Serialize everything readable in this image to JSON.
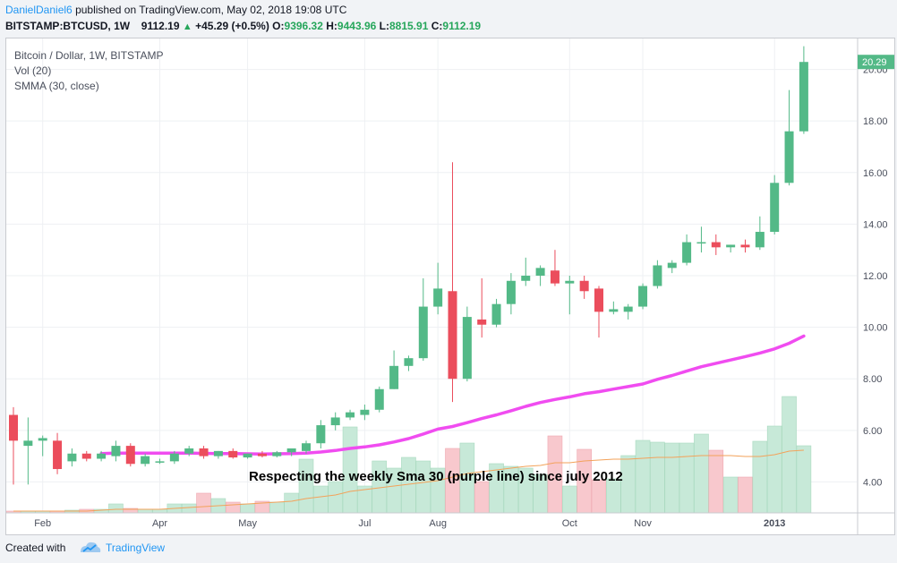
{
  "header": {
    "author": "DanielDaniel6",
    "published_text": "published on TradingView.com, May 02, 2018 19:08 UTC",
    "symbol_label": "BITSTAMP:BTCUSD, 1W",
    "last_price": "9112.19",
    "change": "+45.29 (+0.5%)",
    "o_label": "O:",
    "o_value": "9396.32",
    "h_label": "H:",
    "h_value": "9443.96",
    "l_label": "L:",
    "l_value": "8815.91",
    "c_label": "C:",
    "c_value": "9112.19",
    "up_arrow": "▲",
    "colors": {
      "up": "#26a65b",
      "author": "#2196f3"
    }
  },
  "legend": {
    "title": "Bitcoin / Dollar, 1W, BITSTAMP",
    "vol": "Vol (20)",
    "smma": "SMMA (30, close)"
  },
  "annotation": "Respecting the weekly Sma 30 (purple line) since july 2012",
  "footer": {
    "created_with": "Created with",
    "brand": "TradingView"
  },
  "chart_data": {
    "type": "candlestick",
    "title": "Bitcoin / Dollar, 1W, BITSTAMP",
    "price_axis": {
      "ticks": [
        "4.00",
        "6.00",
        "8.00",
        "10.00",
        "12.00",
        "14.00",
        "16.00",
        "18.00",
        "20.00"
      ],
      "range": [
        2.8,
        21.2
      ],
      "last_label": "20.29"
    },
    "time_axis": {
      "labels": [
        "Feb",
        "Apr",
        "May",
        "Jul",
        "Aug",
        "Oct",
        "Nov",
        "2013"
      ]
    },
    "colors": {
      "up": "#53b987",
      "down": "#eb4d5c",
      "up_vol": "#c7e9d8",
      "down_vol": "#f8c8cd",
      "smma": "#f04cf0",
      "vol_ma": "#f3a25a"
    },
    "candles": [
      {
        "o": 6.6,
        "h": 6.9,
        "l": 3.9,
        "c": 5.6
      },
      {
        "o": 5.4,
        "h": 6.5,
        "l": 3.9,
        "c": 5.6
      },
      {
        "o": 5.6,
        "h": 5.8,
        "l": 5.0,
        "c": 5.7
      },
      {
        "o": 5.6,
        "h": 5.9,
        "l": 4.3,
        "c": 4.5
      },
      {
        "o": 4.8,
        "h": 5.3,
        "l": 4.6,
        "c": 5.1
      },
      {
        "o": 5.1,
        "h": 5.2,
        "l": 4.8,
        "c": 4.9
      },
      {
        "o": 4.9,
        "h": 5.2,
        "l": 4.8,
        "c": 5.1
      },
      {
        "o": 5.0,
        "h": 5.6,
        "l": 4.8,
        "c": 5.4
      },
      {
        "o": 5.4,
        "h": 5.5,
        "l": 4.6,
        "c": 4.7
      },
      {
        "o": 4.7,
        "h": 5.1,
        "l": 4.6,
        "c": 5.0
      },
      {
        "o": 4.8,
        "h": 4.9,
        "l": 4.7,
        "c": 4.8
      },
      {
        "o": 4.8,
        "h": 5.2,
        "l": 4.7,
        "c": 5.1
      },
      {
        "o": 5.1,
        "h": 5.4,
        "l": 5.0,
        "c": 5.3
      },
      {
        "o": 5.3,
        "h": 5.4,
        "l": 4.9,
        "c": 5.0
      },
      {
        "o": 5.0,
        "h": 5.2,
        "l": 4.9,
        "c": 5.2
      },
      {
        "o": 5.2,
        "h": 5.3,
        "l": 4.9,
        "c": 4.95
      },
      {
        "o": 4.95,
        "h": 5.1,
        "l": 4.9,
        "c": 5.1
      },
      {
        "o": 5.1,
        "h": 5.2,
        "l": 4.95,
        "c": 5.0
      },
      {
        "o": 5.0,
        "h": 5.2,
        "l": 4.95,
        "c": 5.15
      },
      {
        "o": 5.15,
        "h": 5.3,
        "l": 5.0,
        "c": 5.3
      },
      {
        "o": 5.2,
        "h": 5.6,
        "l": 5.1,
        "c": 5.5
      },
      {
        "o": 5.5,
        "h": 6.4,
        "l": 5.3,
        "c": 6.2
      },
      {
        "o": 6.2,
        "h": 6.7,
        "l": 6.0,
        "c": 6.5
      },
      {
        "o": 6.5,
        "h": 6.8,
        "l": 6.4,
        "c": 6.7
      },
      {
        "o": 6.6,
        "h": 7.0,
        "l": 6.4,
        "c": 6.8
      },
      {
        "o": 6.8,
        "h": 7.7,
        "l": 6.7,
        "c": 7.6
      },
      {
        "o": 7.6,
        "h": 9.1,
        "l": 7.6,
        "c": 8.5
      },
      {
        "o": 8.5,
        "h": 8.9,
        "l": 8.3,
        "c": 8.8
      },
      {
        "o": 8.8,
        "h": 11.9,
        "l": 8.7,
        "c": 10.8
      },
      {
        "o": 10.8,
        "h": 12.5,
        "l": 10.5,
        "c": 11.5
      },
      {
        "o": 11.4,
        "h": 16.4,
        "l": 7.1,
        "c": 8.0
      },
      {
        "o": 8.0,
        "h": 10.8,
        "l": 7.9,
        "c": 10.4
      },
      {
        "o": 10.3,
        "h": 11.9,
        "l": 9.6,
        "c": 10.1
      },
      {
        "o": 10.1,
        "h": 11.1,
        "l": 10.0,
        "c": 10.9
      },
      {
        "o": 10.9,
        "h": 12.1,
        "l": 10.5,
        "c": 11.8
      },
      {
        "o": 11.8,
        "h": 12.7,
        "l": 11.6,
        "c": 12.0
      },
      {
        "o": 12.0,
        "h": 12.4,
        "l": 11.6,
        "c": 12.3
      },
      {
        "o": 12.2,
        "h": 13.0,
        "l": 11.6,
        "c": 11.7
      },
      {
        "o": 11.7,
        "h": 12.0,
        "l": 10.5,
        "c": 11.8
      },
      {
        "o": 11.8,
        "h": 12.0,
        "l": 11.1,
        "c": 11.4
      },
      {
        "o": 11.5,
        "h": 11.6,
        "l": 9.6,
        "c": 10.6
      },
      {
        "o": 10.6,
        "h": 11.0,
        "l": 10.5,
        "c": 10.7
      },
      {
        "o": 10.6,
        "h": 10.9,
        "l": 10.3,
        "c": 10.8
      },
      {
        "o": 10.8,
        "h": 11.7,
        "l": 10.7,
        "c": 11.6
      },
      {
        "o": 11.6,
        "h": 12.6,
        "l": 11.5,
        "c": 12.4
      },
      {
        "o": 12.3,
        "h": 12.6,
        "l": 12.1,
        "c": 12.5
      },
      {
        "o": 12.5,
        "h": 13.6,
        "l": 12.4,
        "c": 13.3
      },
      {
        "o": 13.3,
        "h": 13.9,
        "l": 12.9,
        "c": 13.3
      },
      {
        "o": 13.3,
        "h": 13.6,
        "l": 12.8,
        "c": 13.1
      },
      {
        "o": 13.1,
        "h": 13.2,
        "l": 12.9,
        "c": 13.2
      },
      {
        "o": 13.2,
        "h": 13.4,
        "l": 12.9,
        "c": 13.1
      },
      {
        "o": 13.1,
        "h": 14.3,
        "l": 13.0,
        "c": 13.7
      },
      {
        "o": 13.7,
        "h": 15.9,
        "l": 13.6,
        "c": 15.6
      },
      {
        "o": 15.6,
        "h": 19.2,
        "l": 15.5,
        "c": 17.6
      },
      {
        "o": 17.6,
        "h": 20.9,
        "l": 17.5,
        "c": 20.29
      }
    ],
    "volume": [
      0.02,
      0.02,
      0.02,
      0.02,
      0.03,
      0.04,
      0.04,
      0.1,
      0.05,
      0.04,
      0.04,
      0.1,
      0.1,
      0.22,
      0.16,
      0.12,
      0.1,
      0.13,
      0.12,
      0.22,
      0.6,
      0.3,
      0.35,
      0.96,
      0.3,
      0.58,
      0.5,
      0.62,
      0.58,
      0.5,
      0.72,
      0.78,
      0.35,
      0.55,
      0.52,
      0.5,
      0.43,
      0.86,
      0.3,
      0.71,
      0.37,
      0.38,
      0.64,
      0.81,
      0.79,
      0.78,
      0.78,
      0.88,
      0.7,
      0.4,
      0.4,
      0.8,
      0.97,
      1.3,
      0.75
    ],
    "smma": [
      null,
      null,
      null,
      null,
      null,
      null,
      5.1,
      5.12,
      5.12,
      5.12,
      5.12,
      5.12,
      5.12,
      5.11,
      5.1,
      5.1,
      5.09,
      5.08,
      5.09,
      5.1,
      5.12,
      5.16,
      5.22,
      5.3,
      5.36,
      5.44,
      5.55,
      5.68,
      5.86,
      6.05,
      6.15,
      6.3,
      6.46,
      6.6,
      6.76,
      6.93,
      7.08,
      7.2,
      7.3,
      7.42,
      7.5,
      7.6,
      7.7,
      7.8,
      7.98,
      8.13,
      8.3,
      8.47,
      8.6,
      8.73,
      8.86,
      9.0,
      9.16,
      9.38,
      9.66,
      9.98
    ],
    "vol_ma": [
      0.02,
      0.02,
      0.02,
      0.02,
      0.02,
      0.02,
      0.03,
      0.04,
      0.04,
      0.04,
      0.04,
      0.05,
      0.06,
      0.07,
      0.08,
      0.09,
      0.1,
      0.11,
      0.12,
      0.13,
      0.16,
      0.18,
      0.2,
      0.24,
      0.26,
      0.28,
      0.3,
      0.32,
      0.34,
      0.36,
      0.4,
      0.44,
      0.46,
      0.48,
      0.5,
      0.52,
      0.53,
      0.56,
      0.56,
      0.58,
      0.59,
      0.6,
      0.6,
      0.61,
      0.62,
      0.62,
      0.63,
      0.64,
      0.64,
      0.64,
      0.63,
      0.63,
      0.65,
      0.69,
      0.7
    ]
  }
}
